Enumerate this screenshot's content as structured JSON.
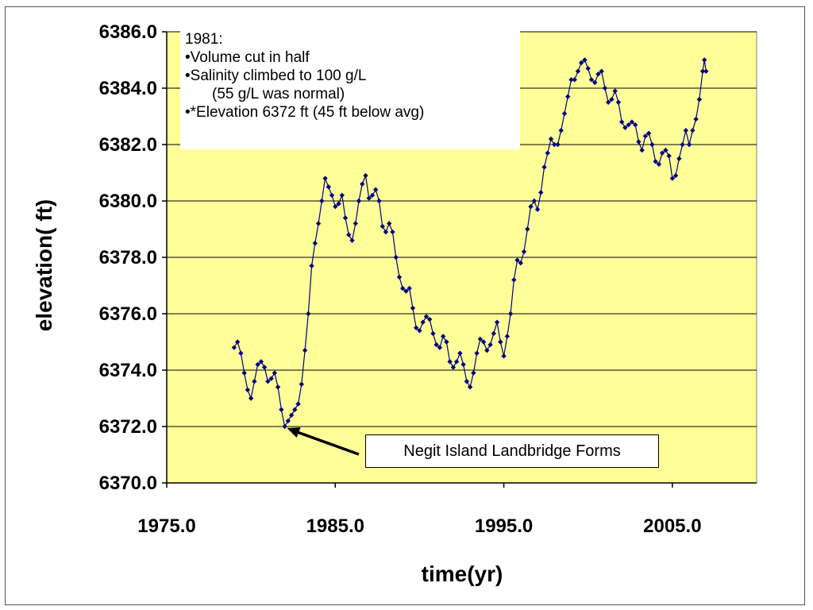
{
  "chart_data": {
    "type": "scatter",
    "line_connected": true,
    "xlabel": "time(yr)",
    "ylabel": "elevation( ft)",
    "xlim": [
      1975,
      2010
    ],
    "ylim": [
      6370,
      6386
    ],
    "x_ticks": [
      "1975.0",
      "1985.0",
      "1995.0",
      "2005.0"
    ],
    "y_ticks": [
      "6386.0",
      "6384.0",
      "6382.0",
      "6380.0",
      "6378.0",
      "6376.0",
      "6374.0",
      "6372.0",
      "6370.0"
    ],
    "grid": "horizontal",
    "colors": {
      "plot_background": "#FFFF99",
      "series": "#000080",
      "gridline": "#000000"
    },
    "annotation_box": [
      "1981:",
      "•Volume cut in half",
      "•Salinity climbed to 100 g/L",
      "(55 g/L was normal)",
      "•*Elevation 6372 ft (45 ft below avg)"
    ],
    "callout": {
      "text": "Negit Island Landbridge Forms",
      "target": [
        1982.0,
        6372.0
      ]
    },
    "series": [
      {
        "points": [
          [
            1979.0,
            6374.8
          ],
          [
            1979.2,
            6375.0
          ],
          [
            1979.4,
            6374.6
          ],
          [
            1979.6,
            6373.9
          ],
          [
            1979.8,
            6373.3
          ],
          [
            1980.0,
            6373.0
          ],
          [
            1980.2,
            6373.6
          ],
          [
            1980.4,
            6374.2
          ],
          [
            1980.6,
            6374.3
          ],
          [
            1980.8,
            6374.1
          ],
          [
            1981.0,
            6373.6
          ],
          [
            1981.2,
            6373.7
          ],
          [
            1981.4,
            6373.9
          ],
          [
            1981.6,
            6373.4
          ],
          [
            1981.8,
            6372.6
          ],
          [
            1982.0,
            6372.0
          ],
          [
            1982.2,
            6372.2
          ],
          [
            1982.4,
            6372.4
          ],
          [
            1982.6,
            6372.6
          ],
          [
            1982.8,
            6372.8
          ],
          [
            1983.0,
            6373.5
          ],
          [
            1983.2,
            6374.7
          ],
          [
            1983.4,
            6376.0
          ],
          [
            1983.6,
            6377.7
          ],
          [
            1983.8,
            6378.5
          ],
          [
            1984.0,
            6379.2
          ],
          [
            1984.2,
            6380.0
          ],
          [
            1984.4,
            6380.8
          ],
          [
            1984.6,
            6380.5
          ],
          [
            1984.8,
            6380.2
          ],
          [
            1985.0,
            6379.8
          ],
          [
            1985.2,
            6379.9
          ],
          [
            1985.4,
            6380.2
          ],
          [
            1985.6,
            6379.4
          ],
          [
            1985.8,
            6378.8
          ],
          [
            1986.0,
            6378.6
          ],
          [
            1986.2,
            6379.2
          ],
          [
            1986.4,
            6380.0
          ],
          [
            1986.6,
            6380.6
          ],
          [
            1986.8,
            6380.9
          ],
          [
            1987.0,
            6380.1
          ],
          [
            1987.2,
            6380.2
          ],
          [
            1987.4,
            6380.4
          ],
          [
            1987.6,
            6380.0
          ],
          [
            1987.8,
            6379.1
          ],
          [
            1988.0,
            6378.9
          ],
          [
            1988.2,
            6379.2
          ],
          [
            1988.4,
            6378.9
          ],
          [
            1988.6,
            6378.0
          ],
          [
            1988.8,
            6377.3
          ],
          [
            1989.0,
            6376.9
          ],
          [
            1989.2,
            6376.8
          ],
          [
            1989.4,
            6376.9
          ],
          [
            1989.6,
            6376.2
          ],
          [
            1989.8,
            6375.5
          ],
          [
            1990.0,
            6375.4
          ],
          [
            1990.2,
            6375.7
          ],
          [
            1990.4,
            6375.9
          ],
          [
            1990.6,
            6375.8
          ],
          [
            1990.8,
            6375.3
          ],
          [
            1991.0,
            6374.9
          ],
          [
            1991.2,
            6374.8
          ],
          [
            1991.4,
            6375.2
          ],
          [
            1991.6,
            6375.0
          ],
          [
            1991.8,
            6374.3
          ],
          [
            1992.0,
            6374.1
          ],
          [
            1992.2,
            6374.3
          ],
          [
            1992.4,
            6374.6
          ],
          [
            1992.6,
            6374.2
          ],
          [
            1992.8,
            6373.6
          ],
          [
            1993.0,
            6373.4
          ],
          [
            1993.2,
            6373.9
          ],
          [
            1993.4,
            6374.6
          ],
          [
            1993.6,
            6375.1
          ],
          [
            1993.8,
            6375.0
          ],
          [
            1994.0,
            6374.7
          ],
          [
            1994.2,
            6374.9
          ],
          [
            1994.4,
            6375.3
          ],
          [
            1994.6,
            6375.7
          ],
          [
            1994.8,
            6375.0
          ],
          [
            1995.0,
            6374.5
          ],
          [
            1995.2,
            6375.2
          ],
          [
            1995.4,
            6376.0
          ],
          [
            1995.6,
            6377.2
          ],
          [
            1995.8,
            6377.9
          ],
          [
            1996.0,
            6377.8
          ],
          [
            1996.2,
            6378.2
          ],
          [
            1996.4,
            6379.0
          ],
          [
            1996.6,
            6379.8
          ],
          [
            1996.8,
            6380.0
          ],
          [
            1997.0,
            6379.7
          ],
          [
            1997.2,
            6380.3
          ],
          [
            1997.4,
            6381.2
          ],
          [
            1997.6,
            6381.7
          ],
          [
            1997.8,
            6382.2
          ],
          [
            1998.0,
            6382.0
          ],
          [
            1998.2,
            6382.0
          ],
          [
            1998.4,
            6382.5
          ],
          [
            1998.6,
            6383.1
          ],
          [
            1998.8,
            6383.7
          ],
          [
            1999.0,
            6384.3
          ],
          [
            1999.2,
            6384.3
          ],
          [
            1999.4,
            6384.6
          ],
          [
            1999.6,
            6384.9
          ],
          [
            1999.8,
            6385.0
          ],
          [
            2000.0,
            6384.7
          ],
          [
            2000.2,
            6384.3
          ],
          [
            2000.4,
            6384.2
          ],
          [
            2000.6,
            6384.5
          ],
          [
            2000.8,
            6384.6
          ],
          [
            2001.0,
            6384.0
          ],
          [
            2001.2,
            6383.5
          ],
          [
            2001.4,
            6383.6
          ],
          [
            2001.6,
            6383.9
          ],
          [
            2001.8,
            6383.5
          ],
          [
            2002.0,
            6382.8
          ],
          [
            2002.2,
            6382.6
          ],
          [
            2002.4,
            6382.7
          ],
          [
            2002.6,
            6382.8
          ],
          [
            2002.8,
            6382.7
          ],
          [
            2003.0,
            6382.1
          ],
          [
            2003.2,
            6381.8
          ],
          [
            2003.4,
            6382.3
          ],
          [
            2003.6,
            6382.4
          ],
          [
            2003.8,
            6382.0
          ],
          [
            2004.0,
            6381.4
          ],
          [
            2004.2,
            6381.3
          ],
          [
            2004.4,
            6381.7
          ],
          [
            2004.6,
            6381.8
          ],
          [
            2004.8,
            6381.6
          ],
          [
            2005.0,
            6380.8
          ],
          [
            2005.2,
            6380.9
          ],
          [
            2005.4,
            6381.5
          ],
          [
            2005.6,
            6382.0
          ],
          [
            2005.8,
            6382.5
          ],
          [
            2006.0,
            6382.0
          ],
          [
            2006.2,
            6382.5
          ],
          [
            2006.4,
            6382.9
          ],
          [
            2006.6,
            6383.6
          ],
          [
            2006.8,
            6384.6
          ],
          [
            2006.9,
            6385.0
          ],
          [
            2007.0,
            6384.6
          ]
        ]
      }
    ]
  }
}
